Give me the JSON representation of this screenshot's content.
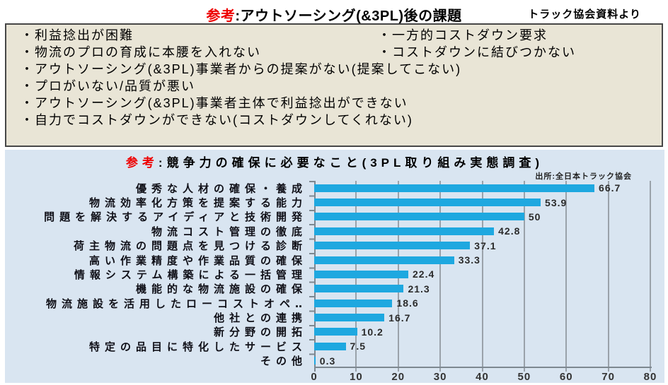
{
  "header": {
    "title_prefix": "参考",
    "title_rest": ":アウトソーシング(&3PL)後の課題",
    "note": "トラック協会資料より"
  },
  "issues_box": {
    "rows_two_col": [
      {
        "left": "・利益捻出が困難",
        "right": "・一方的コストダウン要求"
      },
      {
        "left": "・物流のプロの育成に本腰を入れない",
        "right": "・コストダウンに結びつかない"
      }
    ],
    "rows_full": [
      "・アウトソーシング(&3PL)事業者からの提案がない(提案してこない)",
      "・プロがいない/品質が悪い",
      "・アウトソーシング(&3PL)事業者主体で利益捻出ができない",
      "・自力でコストダウンができない(コストダウンしてくれない)"
    ]
  },
  "chart": {
    "title_prefix": "参考",
    "title_rest": ":競争力の確保に必要なこと(3PL取り組み実態調査)",
    "source": "出所:全日本トラック協会"
  },
  "chart_data": {
    "type": "bar",
    "orientation": "horizontal",
    "title": "参考:競争力の確保に必要なこと(3PL取り組み実態調査)",
    "source": "出所:全日本トラック協会",
    "categories": [
      "優秀な人材の確保・養成",
      "物流効率化方策を提案する能力",
      "問題を解決するアイディアと技術開発",
      "物流コスト管理の徹底",
      "荷主物流の問題点を見つける診断",
      "高い作業精度や作業品質の確保",
      "情報システム構築による一括管理",
      "機能的な物流施設の確保",
      "物流施設を活用したローコストオペ‥",
      "他社との連携",
      "新分野の開拓",
      "特定の品目に特化したサービス",
      "その他"
    ],
    "values": [
      66.7,
      53.9,
      50,
      42.8,
      37.1,
      33.3,
      22.4,
      21.3,
      18.6,
      16.7,
      10.2,
      7.5,
      0.3
    ],
    "xlabel": "",
    "ylabel": "",
    "xlim": [
      0,
      80
    ],
    "xticks": [
      0,
      10,
      20,
      30,
      40,
      50,
      60,
      70,
      80
    ],
    "grid": true,
    "legend": false,
    "bar_color": "#1ea8e0",
    "background": "#d9e5f1"
  },
  "colors": {
    "accent_red": "#ee0000",
    "box_bg": "#e9e5d6",
    "box_border": "#474747",
    "chart_bg": "#d9e5f1",
    "bar": "#1ea8e0",
    "gridline": "#9aa2aa",
    "axis": "#7d8891"
  }
}
